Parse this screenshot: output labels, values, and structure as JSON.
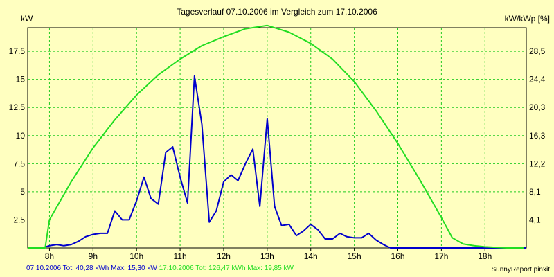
{
  "chart_data": {
    "type": "line",
    "title": "Tagesverlauf 07.10.2006 im Vergleich zum 17.10.2006",
    "ylabel_left": "kW",
    "ylabel_right": "kW/kWp [%]",
    "x_ticks": [
      "8h",
      "9h",
      "10h",
      "11h",
      "12h",
      "13h",
      "14h",
      "15h",
      "16h",
      "17h",
      "18h"
    ],
    "y_ticks_left": [
      "2.5",
      "5",
      "7.5",
      "10",
      "12.5",
      "15",
      "17.5"
    ],
    "y_ticks_right": [
      "4,1",
      "8,1",
      "12,2",
      "16,3",
      "20,3",
      "24,4",
      "28,5"
    ],
    "ylim": [
      0,
      19.6
    ],
    "xlim": [
      7.5,
      18.95
    ],
    "grid": true,
    "series": [
      {
        "name": "07.10.2006",
        "color": "#0000cc",
        "x": [
          7.5,
          7.83,
          8.0,
          8.17,
          8.33,
          8.5,
          8.67,
          8.83,
          9.0,
          9.17,
          9.33,
          9.5,
          9.67,
          9.83,
          10.0,
          10.17,
          10.33,
          10.5,
          10.67,
          10.83,
          11.0,
          11.17,
          11.33,
          11.5,
          11.67,
          11.83,
          12.0,
          12.17,
          12.33,
          12.5,
          12.67,
          12.83,
          13.0,
          13.17,
          13.33,
          13.5,
          13.67,
          13.83,
          14.0,
          14.17,
          14.33,
          14.5,
          14.67,
          14.83,
          15.0,
          15.17,
          15.33,
          15.5,
          15.67,
          15.83,
          16.0,
          16.17,
          16.33,
          16.5,
          16.67,
          16.83,
          17.0,
          17.17,
          17.33,
          17.5,
          17.67,
          17.83,
          18.0,
          18.17,
          18.33,
          18.5,
          18.67,
          18.83,
          18.95
        ],
        "values": [
          0,
          0,
          0.2,
          0.3,
          0.2,
          0.3,
          0.6,
          1.0,
          1.2,
          1.3,
          1.3,
          3.3,
          2.5,
          2.5,
          4.2,
          6.3,
          4.4,
          3.9,
          8.5,
          9.0,
          6.3,
          4.0,
          15.3,
          11.0,
          2.3,
          3.3,
          5.9,
          6.5,
          6.0,
          7.5,
          8.8,
          3.7,
          11.5,
          3.7,
          2.0,
          2.1,
          1.1,
          1.5,
          2.1,
          1.6,
          0.8,
          0.8,
          1.3,
          1.0,
          0.9,
          0.9,
          1.3,
          0.7,
          0.3,
          0,
          0,
          0,
          0,
          0,
          0,
          0,
          0,
          0,
          0,
          0,
          0,
          0,
          0,
          0,
          0,
          0,
          0,
          0,
          0
        ]
      },
      {
        "name": "17.10.2006",
        "color": "#22dd22",
        "x": [
          7.5,
          7.75,
          7.9,
          8.0,
          8.5,
          9.0,
          9.5,
          10.0,
          10.5,
          11.0,
          11.5,
          12.0,
          12.5,
          13.0,
          13.5,
          14.0,
          14.5,
          15.0,
          15.5,
          16.0,
          16.5,
          17.0,
          17.25,
          17.5,
          17.75,
          18.0,
          18.5,
          18.9
        ],
        "values": [
          0,
          0,
          0,
          2.5,
          5.9,
          8.9,
          11.4,
          13.6,
          15.4,
          16.8,
          18.0,
          18.8,
          19.5,
          19.8,
          19.2,
          18.2,
          16.8,
          14.8,
          12.2,
          9.3,
          6.1,
          2.7,
          0.9,
          0.35,
          0.2,
          0.1,
          0,
          0
        ]
      }
    ]
  },
  "footer": {
    "series1_text": "07.10.2006 Tot: 40,28 kWh Max: 15,30 kW",
    "series2_text": "17.10.2006 Tot: 126,47 kWh Max: 19,85 kW",
    "brand": "SunnyReport pinxit"
  }
}
